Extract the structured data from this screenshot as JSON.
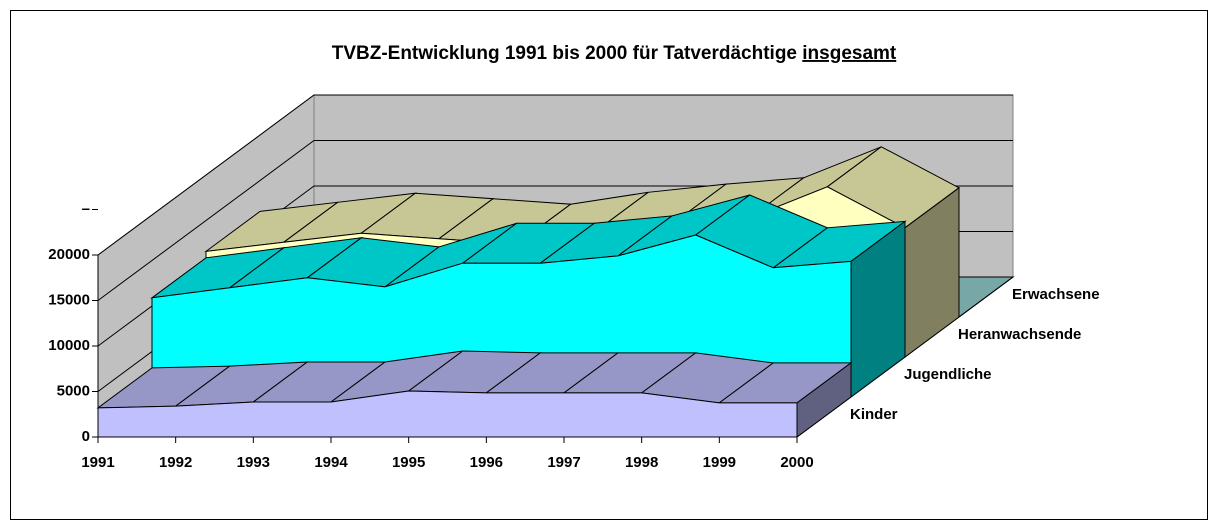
{
  "chart_data": {
    "type": "area3d",
    "title": "TVBZ-Entwicklung 1991 bis 2000  für Tatverdächtige",
    "title_underlined": "insgesamt",
    "categories": [
      "1991",
      "1992",
      "1993",
      "1994",
      "1995",
      "1996",
      "1997",
      "1998",
      "1999",
      "2000"
    ],
    "series": [
      {
        "name": "Kinder",
        "color": "#c0c0ff",
        "values": [
          3200,
          3400,
          3850,
          3850,
          5050,
          4850,
          4850,
          4850,
          3750,
          3750
        ]
      },
      {
        "name": "Jugendliche",
        "color": "#00ffff",
        "values": [
          10900,
          12000,
          13100,
          12100,
          14700,
          14700,
          15500,
          17800,
          14200,
          14900
        ]
      },
      {
        "name": "Heranwachsende",
        "color": "#ffffc0",
        "values": [
          11600,
          12600,
          13600,
          13000,
          12400,
          13700,
          14600,
          15300,
          18700,
          14200
        ]
      },
      {
        "name": "Erwachsene",
        "color": "#99d6d6",
        "values": [
          0,
          0,
          0,
          0,
          0,
          0,
          0,
          0,
          0,
          0
        ]
      }
    ],
    "ylim": [
      0,
      20000
    ],
    "yticks": [
      0,
      5000,
      10000,
      15000,
      20000,
      {
        "value": 25000,
        "label": "–"
      }
    ],
    "grid": true
  }
}
